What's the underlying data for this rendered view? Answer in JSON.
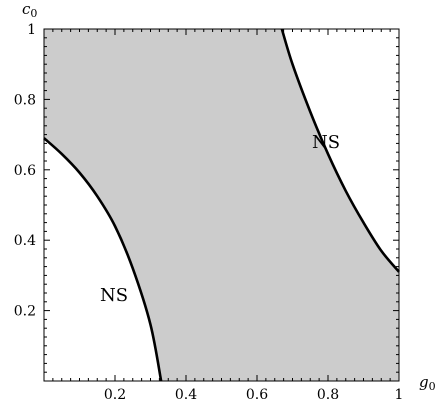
{
  "chart_data": {
    "type": "area",
    "x_axis": {
      "label_main": "g",
      "label_sub": "0",
      "range": [
        0,
        1
      ],
      "ticks": [
        0.2,
        0.4,
        0.6,
        0.8,
        1
      ],
      "tick_labels": [
        "0.2",
        "0.4",
        "0.6",
        "0.8",
        "1"
      ]
    },
    "y_axis": {
      "label_main": "c",
      "label_sub": "0",
      "range": [
        0,
        1
      ],
      "ticks": [
        0.2,
        0.4,
        0.6,
        0.8,
        1
      ],
      "tick_labels": [
        "0.2",
        "0.4",
        "0.6",
        "0.8",
        "1"
      ]
    },
    "shaded_region_color": "#cccccc",
    "curve_color": "#000000",
    "curves": [
      {
        "label": "NS",
        "points": [
          [
            0,
            0.69
          ],
          [
            0.05,
            0.645
          ],
          [
            0.1,
            0.592
          ],
          [
            0.15,
            0.525
          ],
          [
            0.2,
            0.44
          ],
          [
            0.25,
            0.32
          ],
          [
            0.3,
            0.16
          ],
          [
            0.33,
            0
          ]
        ]
      },
      {
        "label": "NS",
        "points": [
          [
            0.67,
            1
          ],
          [
            0.7,
            0.9
          ],
          [
            0.75,
            0.765
          ],
          [
            0.8,
            0.645
          ],
          [
            0.85,
            0.54
          ],
          [
            0.9,
            0.45
          ],
          [
            0.95,
            0.37
          ],
          [
            1,
            0.31
          ]
        ]
      }
    ]
  }
}
